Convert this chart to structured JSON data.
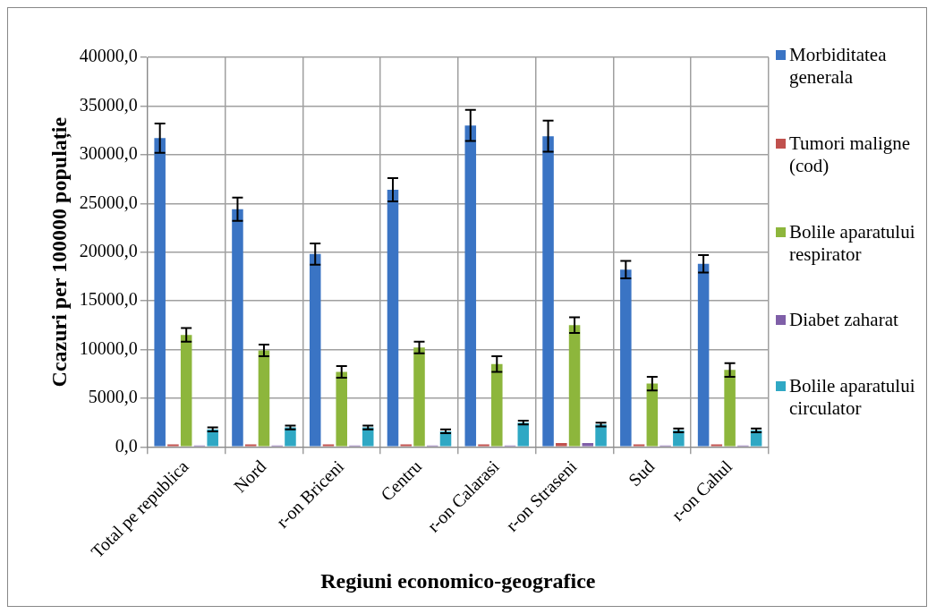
{
  "chart_data": {
    "type": "bar",
    "xlabel": "Regiuni economico-geografice",
    "ylabel": "Ccazuri per 100000 populație",
    "categories": [
      "Total pe republica",
      "Nord",
      "r-on Briceni",
      "Centru",
      "r-on Calarasi",
      "r-on Straseni",
      "Sud",
      "r-on Cahul"
    ],
    "series": [
      {
        "name": "Morbiditatea generala",
        "color": "#3a74c4",
        "values": [
          31700,
          24400,
          19800,
          26400,
          33000,
          31900,
          18200,
          18800
        ],
        "errors": [
          1500,
          1200,
          1100,
          1200,
          1600,
          1600,
          900,
          900
        ]
      },
      {
        "name": "Tumori maligne (cod)",
        "color": "#c0504d",
        "values": [
          250,
          250,
          250,
          250,
          250,
          400,
          250,
          250
        ]
      },
      {
        "name": "Bolile aparatului respirator",
        "color": "#8db63c",
        "values": [
          11500,
          9900,
          7700,
          10200,
          8500,
          12500,
          6500,
          7900
        ],
        "errors": [
          700,
          600,
          600,
          600,
          800,
          800,
          700,
          700
        ]
      },
      {
        "name": "Diabet zaharat",
        "color": "#7f5fa8",
        "values": [
          150,
          150,
          150,
          150,
          150,
          400,
          150,
          150
        ]
      },
      {
        "name": "Bolile aparatului circulator",
        "color": "#2fa8c4",
        "values": [
          1800,
          2000,
          2000,
          1600,
          2500,
          2300,
          1700,
          1700
        ],
        "errors": [
          200,
          200,
          200,
          200,
          200,
          200,
          200,
          200
        ]
      }
    ],
    "ylim": [
      0,
      40000
    ],
    "yticks": [
      {
        "value": 0,
        "label": "0,0"
      },
      {
        "value": 5000,
        "label": "5000,0"
      },
      {
        "value": 10000,
        "label": "10000,0"
      },
      {
        "value": 15000,
        "label": "15000,0"
      },
      {
        "value": 20000,
        "label": "20000,0"
      },
      {
        "value": 25000,
        "label": "25000,0"
      },
      {
        "value": 30000,
        "label": "30000,0"
      },
      {
        "value": 35000,
        "label": "35000,0"
      },
      {
        "value": 40000,
        "label": "40000,0"
      }
    ],
    "grid": true,
    "legend": "right"
  }
}
